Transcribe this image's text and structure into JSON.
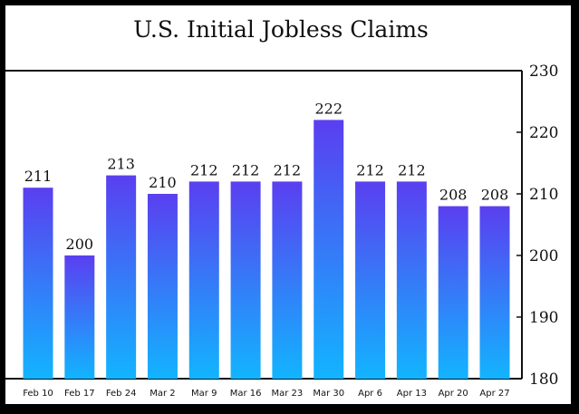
{
  "chart_data": {
    "type": "bar",
    "title": "U.S. Initial Jobless Claims",
    "categories": [
      "Feb 10",
      "Feb 17",
      "Feb 24",
      "Mar 2",
      "Mar 9",
      "Mar 16",
      "Mar 23",
      "Mar 30",
      "Apr 6",
      "Apr 13",
      "Apr 20",
      "Apr 27"
    ],
    "values": [
      211,
      200,
      213,
      210,
      212,
      212,
      212,
      222,
      212,
      212,
      208,
      208
    ],
    "data_labels": [
      "211",
      "200",
      "213",
      "210",
      "212",
      "212",
      "212",
      "222",
      "212",
      "212",
      "208",
      "208"
    ],
    "ylim": [
      180,
      230
    ],
    "yticks": [
      180,
      190,
      200,
      210,
      220,
      230
    ],
    "ytick_labels": [
      "180",
      "190",
      "200",
      "210",
      "220",
      "230"
    ],
    "y_axis_side": "right",
    "grid": false,
    "legend": "none",
    "bar_gradient": {
      "top": "#5a3ff0",
      "bottom": "#12b4ff"
    }
  }
}
